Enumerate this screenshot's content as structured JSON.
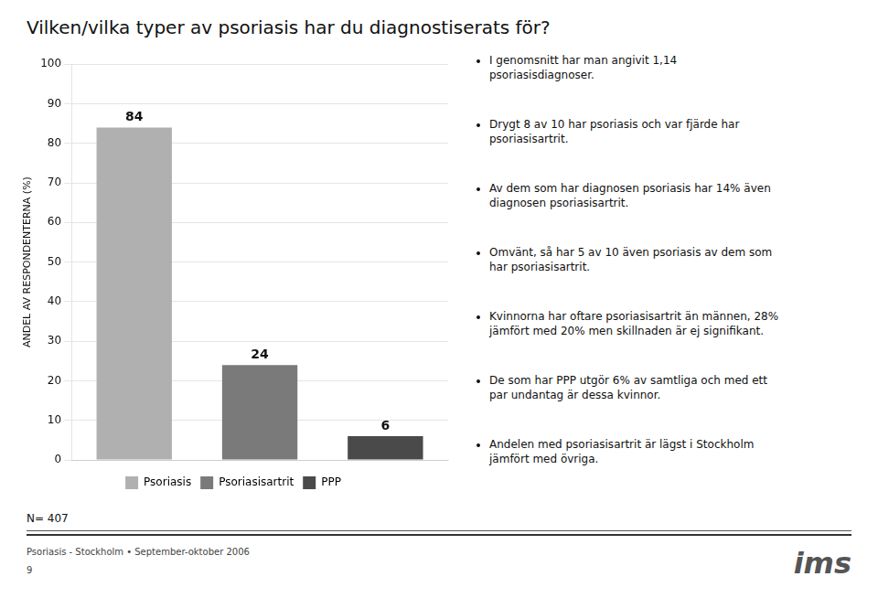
{
  "chart_data": {
    "type": "bar",
    "title": "Vilken/vilka typer av psoriasis har du diagnostiserats för?",
    "categories": [
      "Psoriasis",
      "Psoriasisartrit",
      "PPP"
    ],
    "values": [
      84,
      24,
      6
    ],
    "colors": [
      "#b0b0b0",
      "#7a7a7a",
      "#4a4a4a"
    ],
    "ylabel": "ANDEL AV RESPONDENTERNA (%)",
    "ylim": [
      0,
      100
    ],
    "yticks": [
      0,
      10,
      20,
      30,
      40,
      50,
      60,
      70,
      80,
      90,
      100
    ],
    "grid": true,
    "legend": "bottom",
    "data_labels": true,
    "tick_labels": "y",
    "annotations": [
      "I genomsnitt har man angivit 1,14\npsoriasisdiagnoser.",
      "Drygt 8 av 10 har psoriasis och var fjärde har\npsoriasisartrit.",
      "Av dem som har diagnosen psoriasis har 14% även\ndiagnosen psoriasisartrit.",
      "Omvänt, så har 5 av 10 även psoriasis av dem som\nhar psoriasisartrit.",
      "Kvinnorna har oftare psoriasisartrit än männen, 28%\njämfört med 20% men skillnaden är ej signifikant.",
      "De som har PPP utgör 6% av samtliga och med ett\npar undantag är dessa kvinnor.",
      "Andelen med psoriasisartrit är lägst i Stockholm\njämfört med övriga.",
      "N= 407",
      "Psoriasis - Stockholm • September-oktober 2006",
      "9",
      "ims"
    ]
  }
}
